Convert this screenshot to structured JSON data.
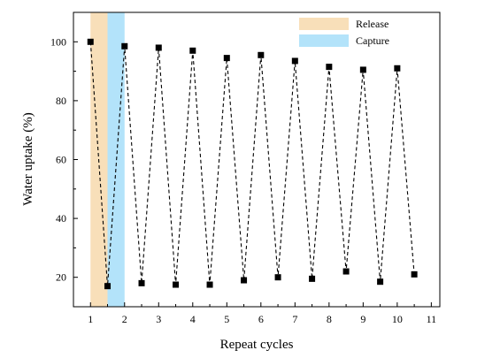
{
  "chart_data": {
    "type": "line",
    "xlabel": "Repeat cycles",
    "ylabel": "Water uptake (%)",
    "xlim": [
      0.5,
      11.25
    ],
    "ylim": [
      10,
      110
    ],
    "xticks": [
      1,
      2,
      3,
      4,
      5,
      6,
      7,
      8,
      9,
      10,
      11
    ],
    "yticks": [
      20,
      40,
      60,
      80,
      100
    ],
    "grid": false,
    "legend_position": "top-right",
    "series": [
      {
        "line_style": "dashed",
        "marker": "square",
        "color": "#000000",
        "x": [
          1,
          1.5,
          2,
          2.5,
          3,
          3.5,
          4,
          4.5,
          5,
          5.5,
          6,
          6.5,
          7,
          7.5,
          8,
          8.5,
          9,
          9.5,
          10,
          10.5
        ],
        "y": [
          100,
          17,
          98.5,
          18,
          98,
          17.5,
          97,
          17.5,
          94.5,
          19,
          95.5,
          20,
          93.5,
          19.5,
          91.5,
          22,
          90.5,
          18.5,
          91,
          21
        ]
      }
    ],
    "bands": [
      {
        "name": "Release",
        "x_start": 1.0,
        "x_end": 1.5,
        "color": "#f8dfb9"
      },
      {
        "name": "Capture",
        "x_start": 1.5,
        "x_end": 2.0,
        "color": "#b3e3fa"
      }
    ]
  }
}
